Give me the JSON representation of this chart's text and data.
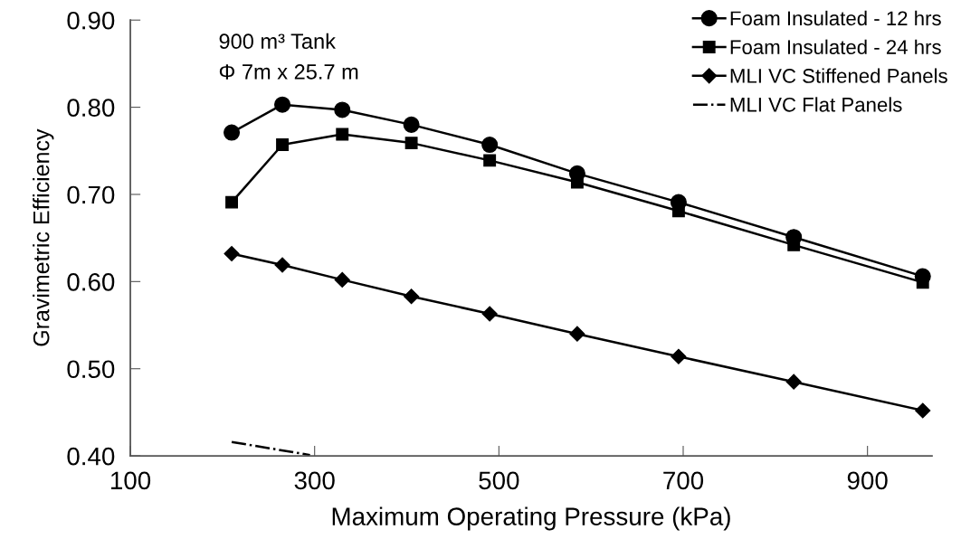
{
  "chart_data": {
    "type": "line",
    "xlabel": "Maximum Operating Pressure (kPa)",
    "ylabel": "Gravimetric Efficiency",
    "x": [
      210,
      265,
      330,
      405,
      490,
      585,
      695,
      820,
      960
    ],
    "series": [
      {
        "name": "Foam Insulated - 12 hrs",
        "color": "#000000",
        "marker": "circle",
        "values": [
          0.771,
          0.803,
          0.797,
          0.78,
          0.757,
          0.724,
          0.691,
          0.651,
          0.606
        ]
      },
      {
        "name": "Foam Insulated - 24 hrs",
        "color": "#000000",
        "marker": "square",
        "values": [
          0.691,
          0.757,
          0.769,
          0.759,
          0.739,
          0.714,
          0.681,
          0.642,
          0.599
        ]
      },
      {
        "name": "MLI VC Stiffened Panels",
        "color": "#000000",
        "marker": "diamond",
        "values": [
          0.632,
          0.619,
          0.602,
          0.583,
          0.563,
          0.54,
          0.514,
          0.485,
          0.452
        ]
      },
      {
        "name": "MLI VC Flat Panels",
        "color": "#000000",
        "marker": "none",
        "line_style": "dashdot",
        "x": [
          210,
          295
        ],
        "values": [
          0.416,
          0.401
        ]
      }
    ],
    "xlim": [
      100,
      970
    ],
    "xticks": [
      100,
      300,
      500,
      700,
      900
    ],
    "ylim": [
      0.4,
      0.9
    ],
    "yticks": [
      {
        "value": 0.4,
        "label": "0.40"
      },
      {
        "value": 0.5,
        "label": "0.50"
      },
      {
        "value": 0.6,
        "label": "0.60"
      },
      {
        "value": 0.7,
        "label": "0.70"
      },
      {
        "value": 0.8,
        "label": "0.80"
      },
      {
        "value": 0.9,
        "label": "0.90"
      }
    ],
    "annotations": [
      "900 m³ Tank",
      "Φ 7m x 25.7 m"
    ],
    "legend": "top right",
    "grid": false
  }
}
